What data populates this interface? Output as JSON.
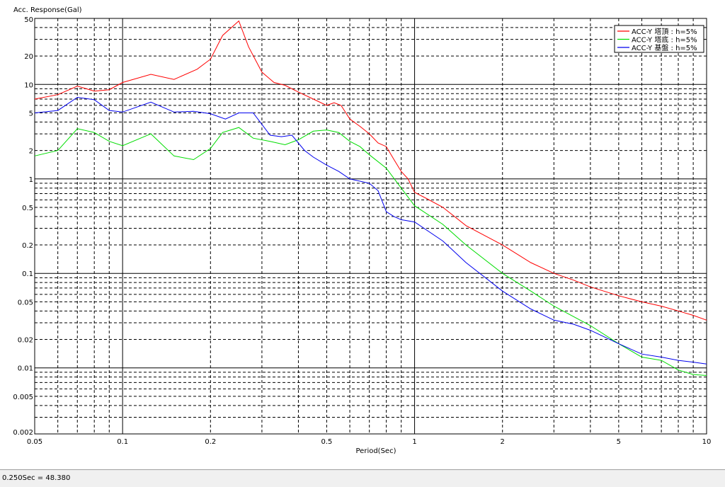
{
  "status": {
    "text": "0.250Sec = 48.380"
  },
  "chart_data": {
    "type": "line",
    "title": "",
    "ylabel": "Acc. Response(Gal)",
    "xlabel": "Period(Sec)",
    "xscale": "log",
    "yscale": "log",
    "xlim": [
      0.05,
      10
    ],
    "ylim": [
      0.002,
      50
    ],
    "grid": true,
    "legend_position": "top-right",
    "x_ticks": [
      "0.05",
      "0.1",
      "0.2",
      "0.5",
      "1",
      "2",
      "5",
      "10"
    ],
    "x_tick_values": [
      0.05,
      0.1,
      0.2,
      0.5,
      1,
      2,
      5,
      10
    ],
    "y_ticks": [
      "50",
      "20",
      "10",
      "5",
      "2",
      "1",
      "0.5",
      "0.2",
      "0.1",
      "0.05",
      "0.02",
      "0.01",
      "0.005",
      "0.002"
    ],
    "y_tick_values": [
      50,
      20,
      10,
      5,
      2,
      1,
      0.5,
      0.2,
      0.1,
      0.05,
      0.02,
      0.01,
      0.005,
      0.002
    ],
    "series": [
      {
        "name": "ACC-Y 塔頂 : h=5%",
        "color": "#ff0000",
        "points": [
          [
            0.05,
            7.0
          ],
          [
            0.06,
            7.8
          ],
          [
            0.07,
            9.6
          ],
          [
            0.08,
            8.5
          ],
          [
            0.09,
            8.8
          ],
          [
            0.1,
            10.5
          ],
          [
            0.125,
            12.8
          ],
          [
            0.15,
            11.3
          ],
          [
            0.18,
            14.5
          ],
          [
            0.2,
            18.5
          ],
          [
            0.22,
            33.0
          ],
          [
            0.25,
            47.0
          ],
          [
            0.27,
            25.0
          ],
          [
            0.3,
            13.5
          ],
          [
            0.33,
            10.5
          ],
          [
            0.36,
            9.8
          ],
          [
            0.4,
            8.3
          ],
          [
            0.45,
            7.0
          ],
          [
            0.5,
            6.0
          ],
          [
            0.53,
            6.4
          ],
          [
            0.56,
            6.0
          ],
          [
            0.6,
            4.3
          ],
          [
            0.65,
            3.6
          ],
          [
            0.7,
            3.0
          ],
          [
            0.75,
            2.4
          ],
          [
            0.8,
            2.2
          ],
          [
            0.85,
            1.6
          ],
          [
            0.9,
            1.2
          ],
          [
            0.95,
            1.0
          ],
          [
            1.0,
            0.72
          ],
          [
            1.1,
            0.62
          ],
          [
            1.25,
            0.5
          ],
          [
            1.5,
            0.32
          ],
          [
            2.0,
            0.2
          ],
          [
            2.5,
            0.13
          ],
          [
            3.0,
            0.1
          ],
          [
            3.5,
            0.085
          ],
          [
            4.0,
            0.072
          ],
          [
            5.0,
            0.058
          ],
          [
            6.0,
            0.05
          ],
          [
            7.0,
            0.045
          ],
          [
            8.0,
            0.04
          ],
          [
            9.0,
            0.036
          ],
          [
            10.0,
            0.032
          ]
        ]
      },
      {
        "name": "ACC-Y 塔底 : h=5%",
        "color": "#00dd00",
        "points": [
          [
            0.05,
            1.75
          ],
          [
            0.06,
            2.0
          ],
          [
            0.07,
            3.4
          ],
          [
            0.08,
            3.1
          ],
          [
            0.09,
            2.5
          ],
          [
            0.1,
            2.25
          ],
          [
            0.125,
            3.0
          ],
          [
            0.15,
            1.75
          ],
          [
            0.175,
            1.6
          ],
          [
            0.2,
            2.1
          ],
          [
            0.22,
            3.1
          ],
          [
            0.25,
            3.5
          ],
          [
            0.28,
            2.7
          ],
          [
            0.32,
            2.5
          ],
          [
            0.36,
            2.3
          ],
          [
            0.4,
            2.6
          ],
          [
            0.45,
            3.2
          ],
          [
            0.5,
            3.3
          ],
          [
            0.55,
            3.1
          ],
          [
            0.6,
            2.5
          ],
          [
            0.65,
            2.2
          ],
          [
            0.7,
            1.8
          ],
          [
            0.8,
            1.3
          ],
          [
            0.9,
            0.8
          ],
          [
            1.0,
            0.52
          ],
          [
            1.25,
            0.33
          ],
          [
            1.5,
            0.2
          ],
          [
            2.0,
            0.1
          ],
          [
            2.5,
            0.065
          ],
          [
            3.0,
            0.045
          ],
          [
            4.0,
            0.028
          ],
          [
            5.0,
            0.018
          ],
          [
            6.0,
            0.013
          ],
          [
            7.0,
            0.012
          ],
          [
            8.0,
            0.0095
          ],
          [
            9.0,
            0.0085
          ],
          [
            10.0,
            0.0083
          ]
        ]
      },
      {
        "name": "ACC-Y 基盤 : h=5%",
        "color": "#0000ee",
        "points": [
          [
            0.05,
            5.0
          ],
          [
            0.06,
            5.3
          ],
          [
            0.07,
            7.3
          ],
          [
            0.08,
            6.9
          ],
          [
            0.09,
            5.3
          ],
          [
            0.1,
            5.1
          ],
          [
            0.125,
            6.5
          ],
          [
            0.15,
            5.1
          ],
          [
            0.175,
            5.2
          ],
          [
            0.2,
            4.9
          ],
          [
            0.225,
            4.3
          ],
          [
            0.25,
            5.0
          ],
          [
            0.28,
            5.0
          ],
          [
            0.32,
            2.9
          ],
          [
            0.35,
            2.8
          ],
          [
            0.38,
            2.9
          ],
          [
            0.42,
            2.0
          ],
          [
            0.45,
            1.7
          ],
          [
            0.5,
            1.4
          ],
          [
            0.55,
            1.2
          ],
          [
            0.6,
            1.0
          ],
          [
            0.7,
            0.9
          ],
          [
            0.75,
            0.75
          ],
          [
            0.8,
            0.45
          ],
          [
            0.85,
            0.4
          ],
          [
            0.9,
            0.37
          ],
          [
            1.0,
            0.35
          ],
          [
            1.25,
            0.22
          ],
          [
            1.5,
            0.13
          ],
          [
            2.0,
            0.065
          ],
          [
            2.5,
            0.042
          ],
          [
            3.0,
            0.032
          ],
          [
            3.5,
            0.029
          ],
          [
            4.0,
            0.025
          ],
          [
            5.0,
            0.018
          ],
          [
            6.0,
            0.014
          ],
          [
            7.0,
            0.013
          ],
          [
            8.0,
            0.012
          ],
          [
            9.0,
            0.0115
          ],
          [
            10.0,
            0.011
          ]
        ]
      }
    ]
  }
}
